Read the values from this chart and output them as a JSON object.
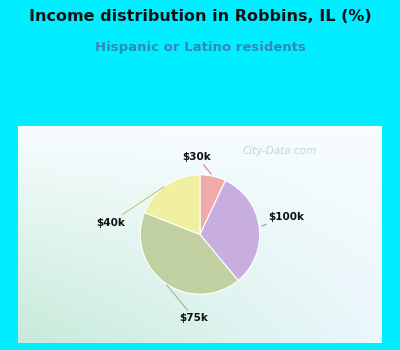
{
  "title": "Income distribution in Robbins, IL (%)",
  "subtitle": "Hispanic or Latino residents",
  "slices": [
    {
      "label": "$30k",
      "value": 7,
      "color": "#f0aaaa"
    },
    {
      "label": "$100k",
      "value": 32,
      "color": "#c8aee0"
    },
    {
      "label": "$75k",
      "value": 42,
      "color": "#c0d0a0"
    },
    {
      "label": "$40k",
      "value": 19,
      "color": "#f0f0a0"
    }
  ],
  "bg_color": "#00eeff",
  "chart_bg_color_tl": "#d0ede0",
  "chart_bg_color_tr": "#e8f4f8",
  "chart_bg_color_br": "#f0f8ff",
  "title_color": "#111111",
  "subtitle_color": "#3388bb",
  "label_color": "#111111",
  "line_colors": {
    "$30k": "#e08080",
    "$100k": "#a090c0",
    "$75k": "#a0b888",
    "$40k": "#c8c870"
  },
  "watermark": "City-Data.com",
  "watermark_color": "#aacccc"
}
